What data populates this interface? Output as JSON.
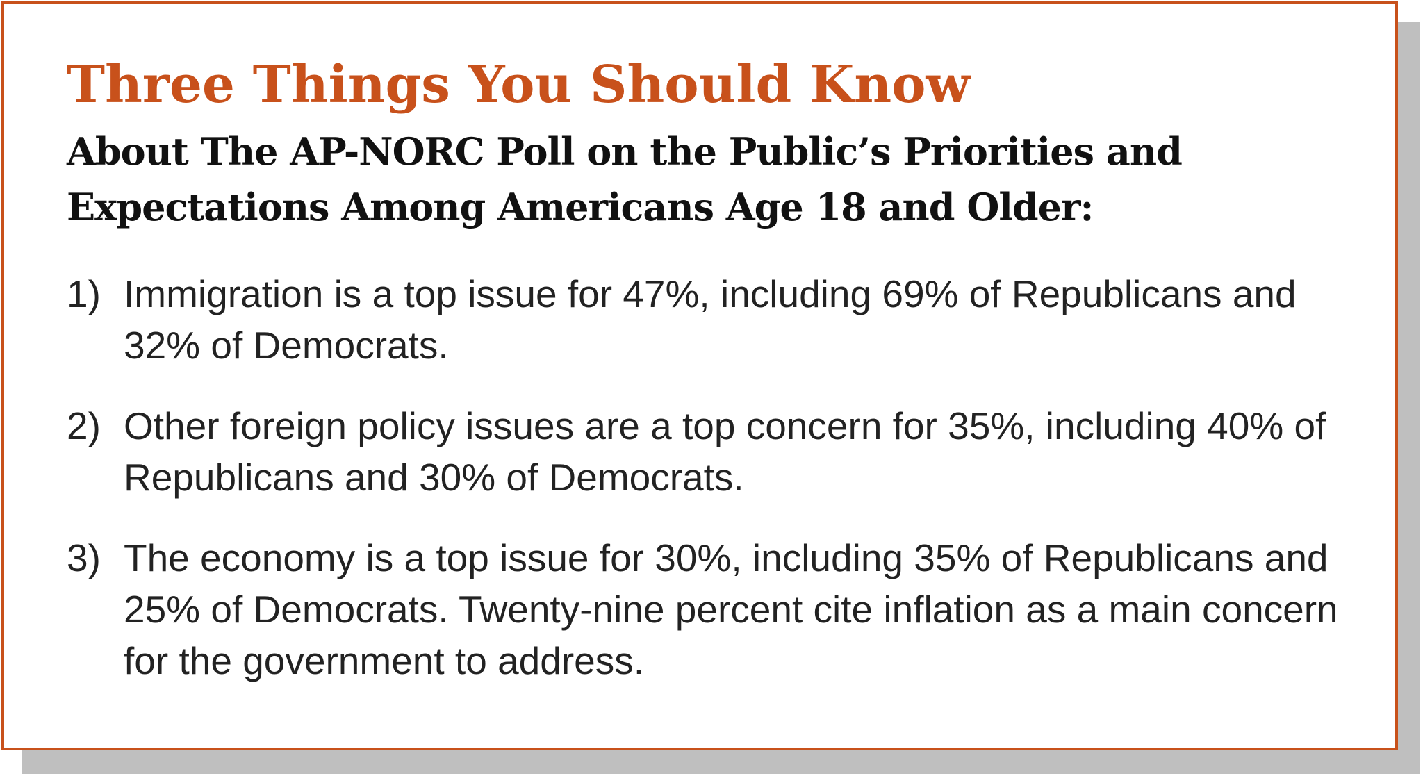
{
  "card": {
    "border_color": "#c8511b",
    "shadow_color": "#bfbfbf",
    "title": "Three Things You Should Know",
    "title_color": "#c8511b",
    "subtitle": "About The AP-NORC Poll on the Public’s Priorities and Expectations Among Americans Age 18 and Older:"
  },
  "facts": [
    {
      "number": "1)",
      "text": "Immigration is a top issue for 47%, including 69% of Republicans and 32% of Democrats."
    },
    {
      "number": "2)",
      "text": "Other foreign policy issues are a top concern for 35%, including 40% of Republicans and 30% of Democrats."
    },
    {
      "number": "3)",
      "text": "The economy is a top issue for 30%, including 35% of Republicans and 25% of Democrats. Twenty-nine percent cite inflation as a main concern for the government to address."
    }
  ]
}
